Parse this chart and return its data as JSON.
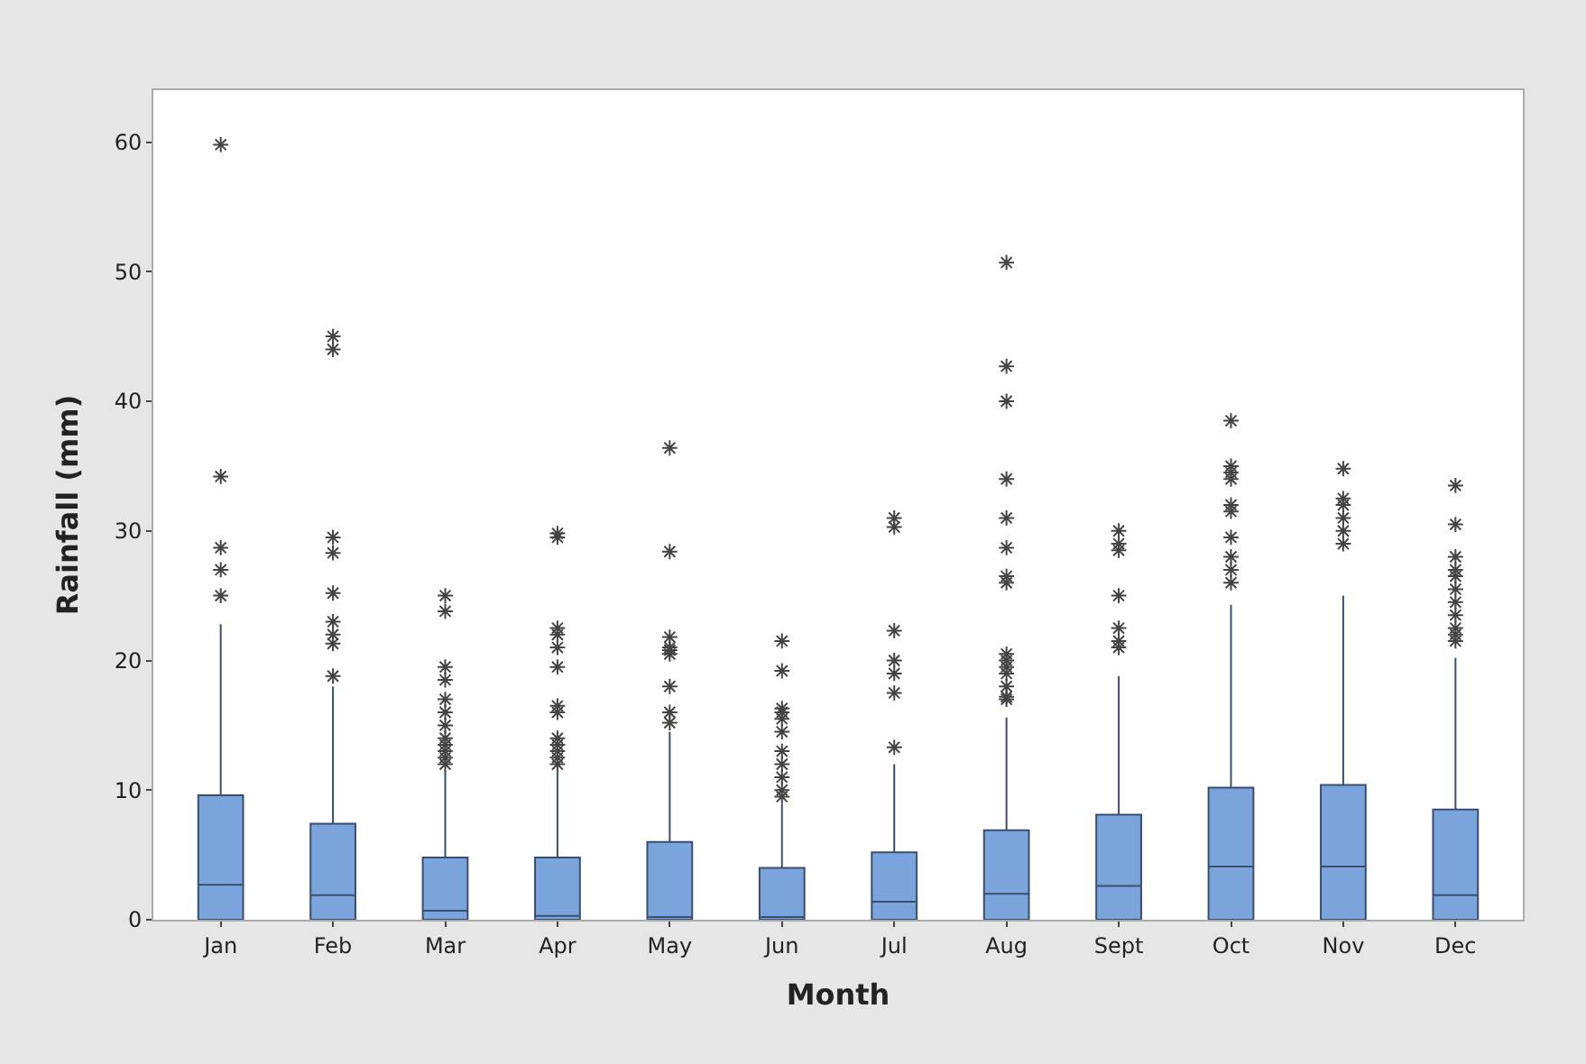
{
  "chart_data": {
    "type": "box",
    "xlabel": "Month",
    "ylabel": "Rainfall (mm)",
    "categories": [
      "Jan",
      "Feb",
      "Mar",
      "Apr",
      "May",
      "Jun",
      "Jul",
      "Aug",
      "Sept",
      "Oct",
      "Nov",
      "Dec"
    ],
    "ylim": [
      0,
      64
    ],
    "yticks": [
      0,
      10,
      20,
      30,
      40,
      50,
      60
    ],
    "marker": "star",
    "color": "#7ba4dc",
    "boxes": [
      {
        "low": 0,
        "q1": 0,
        "median": 2.7,
        "q3": 9.6,
        "high": 22.8,
        "outliers": [
          59.8,
          34.2,
          28.7,
          27,
          25
        ]
      },
      {
        "low": 0,
        "q1": 0,
        "median": 1.9,
        "q3": 7.4,
        "high": 18,
        "outliers": [
          45,
          44,
          29.5,
          28.3,
          25.2,
          23,
          22,
          21.3,
          18.8
        ]
      },
      {
        "low": 0,
        "q1": 0,
        "median": 0.7,
        "q3": 4.8,
        "high": 11.5,
        "outliers": [
          25,
          23.8,
          19.5,
          18.5,
          17,
          16,
          15,
          14,
          13.5,
          13,
          12.5,
          12
        ]
      },
      {
        "low": 0,
        "q1": 0,
        "median": 0.3,
        "q3": 4.8,
        "high": 11.5,
        "outliers": [
          29.8,
          29.5,
          22.5,
          22,
          21,
          19.5,
          16.5,
          16,
          14,
          13.5,
          13,
          12.5,
          12
        ]
      },
      {
        "low": 0,
        "q1": 0,
        "median": 0.2,
        "q3": 6,
        "high": 14.5,
        "outliers": [
          36.4,
          28.4,
          21.8,
          21,
          20.8,
          20.5,
          18,
          16,
          15.2
        ]
      },
      {
        "low": 0,
        "q1": 0,
        "median": 0.2,
        "q3": 4,
        "high": 8.9,
        "outliers": [
          21.5,
          19.2,
          16.3,
          16,
          15.5,
          14.5,
          13,
          12,
          11,
          10,
          9.5
        ]
      },
      {
        "low": 0,
        "q1": 0,
        "median": 1.4,
        "q3": 5.2,
        "high": 12,
        "outliers": [
          31,
          30.3,
          22.3,
          20,
          19,
          17.5,
          13.3
        ]
      },
      {
        "low": 0,
        "q1": 0,
        "median": 2,
        "q3": 6.9,
        "high": 15.6,
        "outliers": [
          50.7,
          42.7,
          40,
          34,
          31,
          28.7,
          26.5,
          26,
          20.5,
          20,
          19.5,
          19,
          18,
          17.2,
          17
        ]
      },
      {
        "low": 0,
        "q1": 0,
        "median": 2.6,
        "q3": 8.1,
        "high": 18.8,
        "outliers": [
          30,
          29,
          28.5,
          25,
          22.5,
          21.5,
          21
        ]
      },
      {
        "low": 0,
        "q1": 0,
        "median": 4.1,
        "q3": 10.2,
        "high": 24.3,
        "outliers": [
          38.5,
          35,
          34.5,
          34,
          32,
          31.5,
          29.5,
          28,
          27,
          26
        ]
      },
      {
        "low": 0,
        "q1": 0,
        "median": 4.1,
        "q3": 10.4,
        "high": 25,
        "outliers": [
          34.8,
          32.5,
          32,
          31,
          30,
          29
        ]
      },
      {
        "low": 0,
        "q1": 0,
        "median": 1.9,
        "q3": 8.5,
        "high": 20.2,
        "outliers": [
          33.5,
          30.5,
          28,
          27,
          26.5,
          25.5,
          24.5,
          23.5,
          22.5,
          22,
          21.5
        ]
      }
    ]
  }
}
